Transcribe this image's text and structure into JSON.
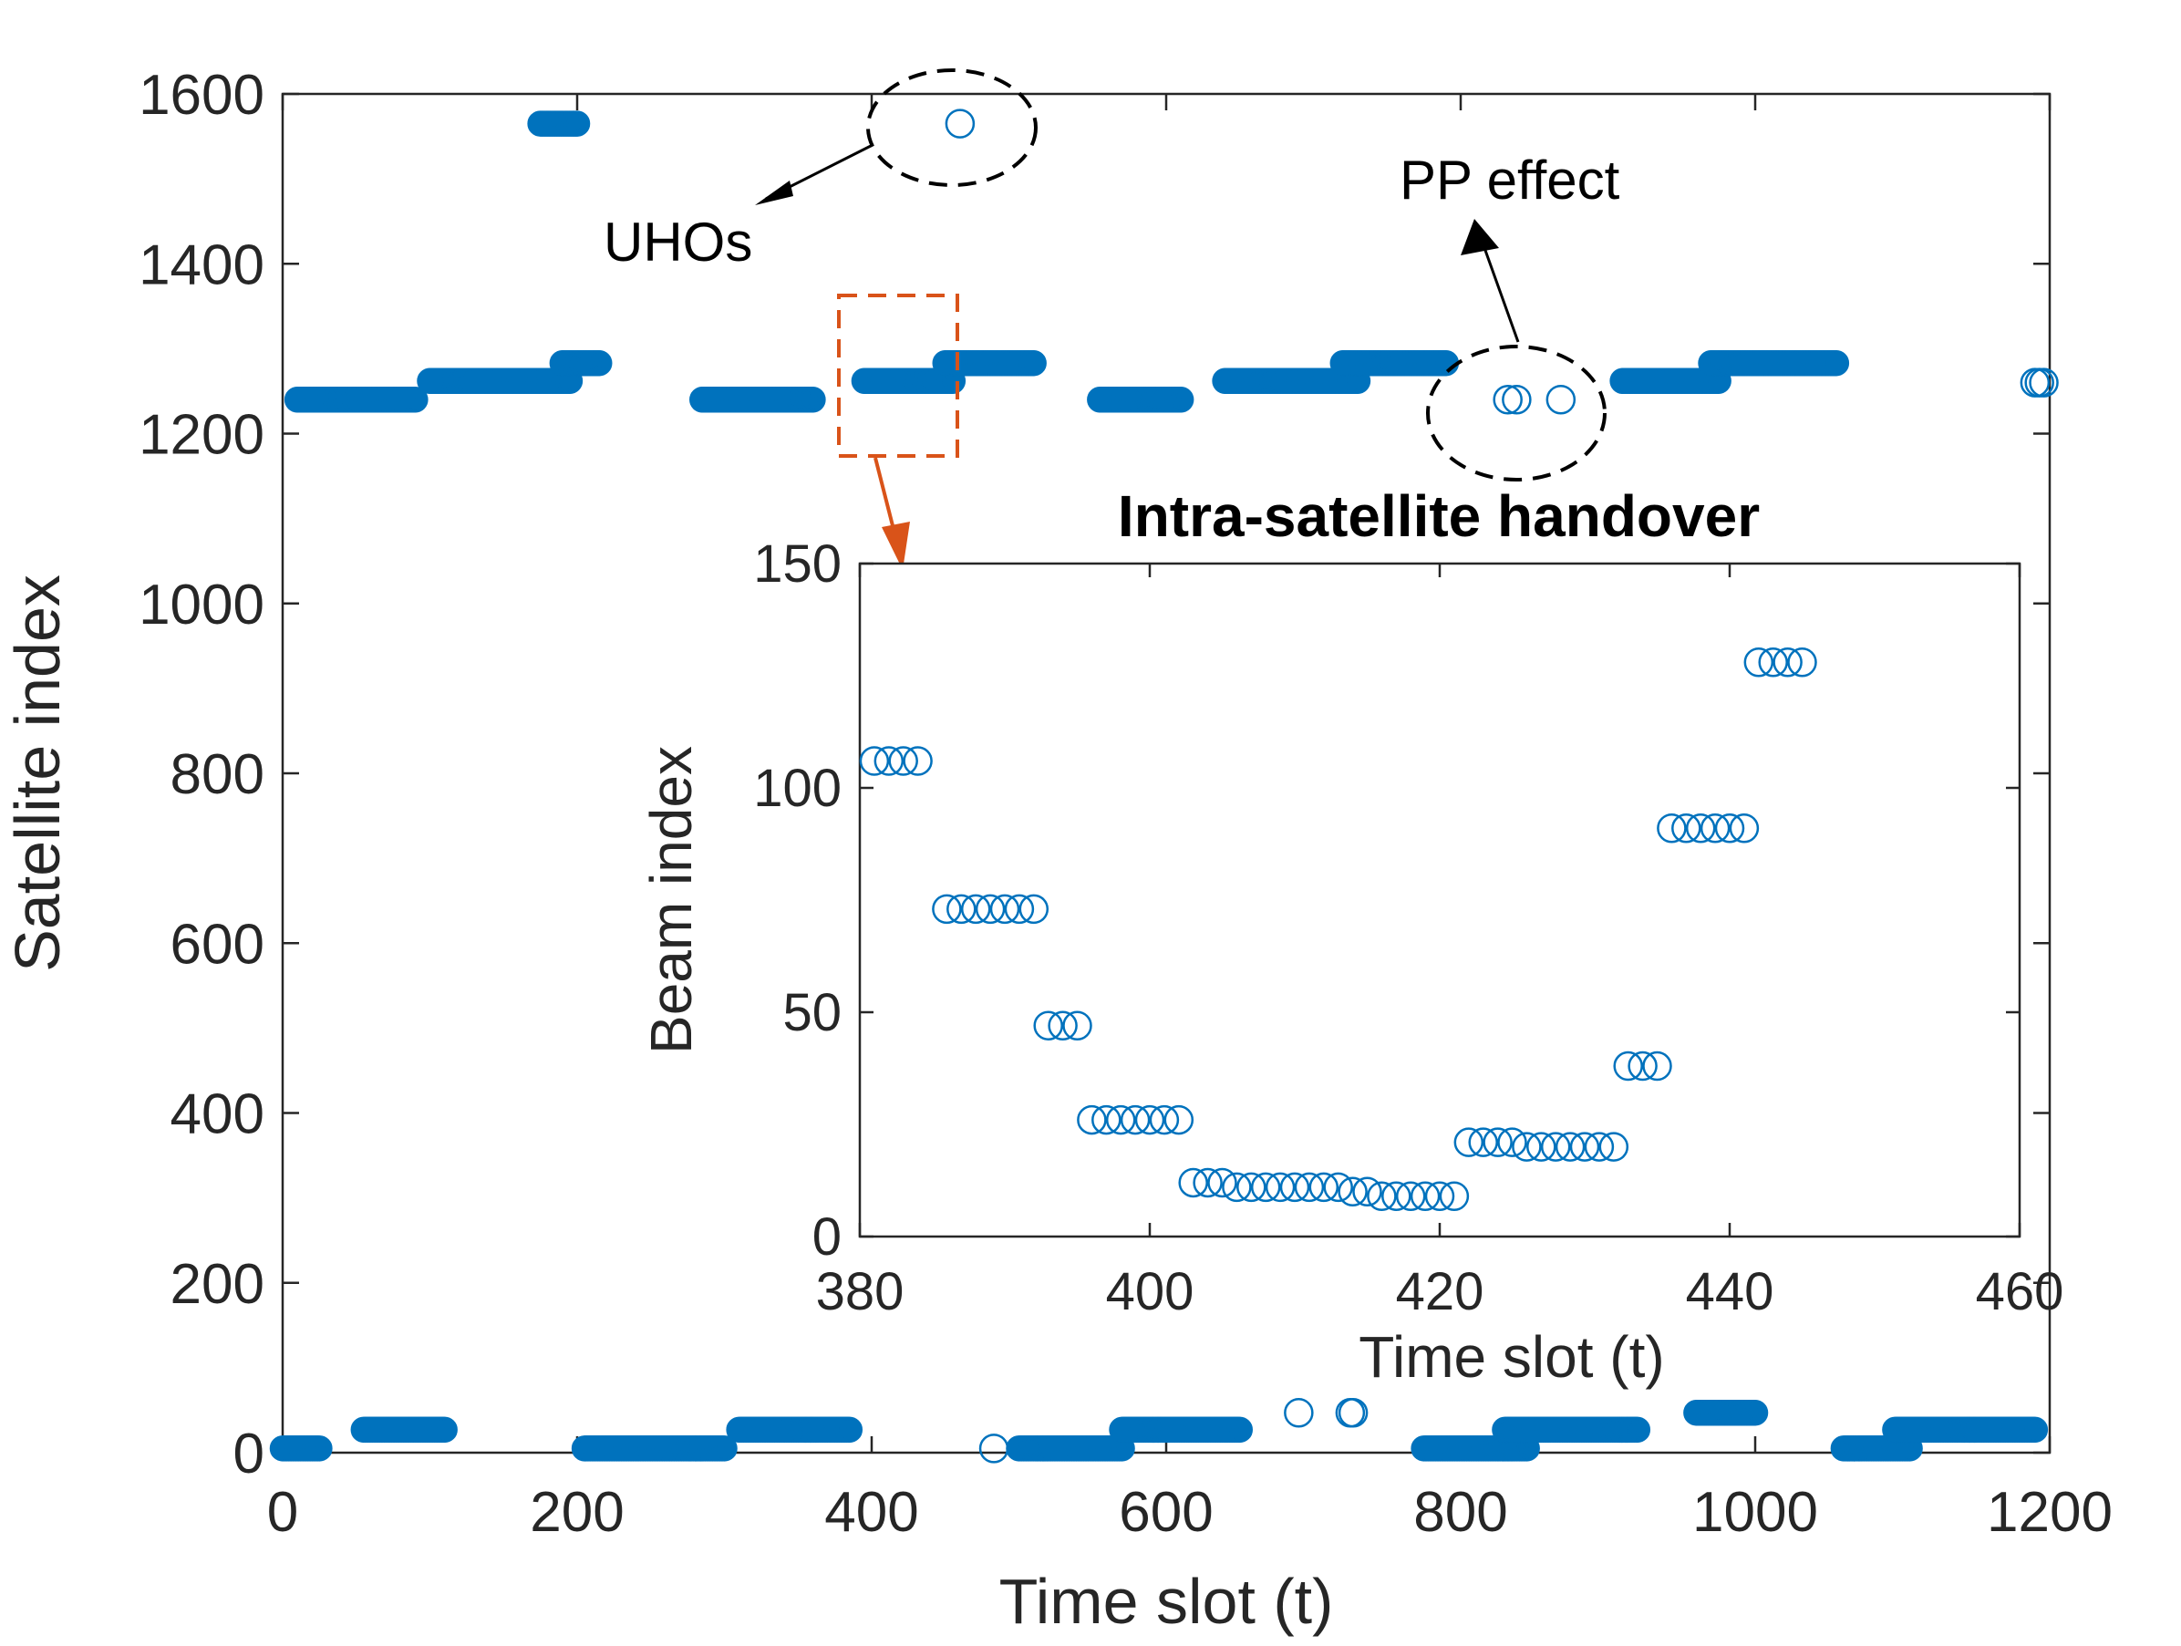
{
  "colors": {
    "marker": "#0072BD",
    "axis": "#262626",
    "zoom_box": "#D95319",
    "annotation": "#000000"
  },
  "chart_data": [
    {
      "type": "scatter",
      "name": "main",
      "xlabel": "Time slot (t)",
      "ylabel": "Satellite index",
      "xlim": [
        0,
        1200
      ],
      "ylim": [
        0,
        1600
      ],
      "xticks": [
        0,
        200,
        400,
        600,
        800,
        1000,
        1200
      ],
      "yticks": [
        0,
        200,
        400,
        600,
        800,
        1000,
        1200,
        1400,
        1600
      ],
      "marker": "open-circle",
      "segments": [
        {
          "x_start": 0,
          "x_end": 25,
          "y": 5
        },
        {
          "x_start": 10,
          "x_end": 90,
          "y": 1240
        },
        {
          "x_start": 55,
          "x_end": 110,
          "y": 27
        },
        {
          "x_start": 100,
          "x_end": 195,
          "y": 1262
        },
        {
          "x_start": 175,
          "x_end": 200,
          "y": 1565
        },
        {
          "x_start": 190,
          "x_end": 215,
          "y": 1283
        },
        {
          "x_start": 205,
          "x_end": 300,
          "y": 5
        },
        {
          "x_start": 285,
          "x_end": 360,
          "y": 1240
        },
        {
          "x_start": 310,
          "x_end": 385,
          "y": 27
        },
        {
          "x_start": 395,
          "x_end": 455,
          "y": 1262
        },
        {
          "x_start": 450,
          "x_end": 510,
          "y": 1283
        },
        {
          "x_start": 500,
          "x_end": 570,
          "y": 5
        },
        {
          "x_start": 555,
          "x_end": 610,
          "y": 1240
        },
        {
          "x_start": 570,
          "x_end": 650,
          "y": 27
        },
        {
          "x_start": 640,
          "x_end": 730,
          "y": 1262
        },
        {
          "x_start": 720,
          "x_end": 790,
          "y": 1283
        },
        {
          "x_start": 775,
          "x_end": 845,
          "y": 5
        },
        {
          "x_start": 830,
          "x_end": 920,
          "y": 27
        },
        {
          "x_start": 910,
          "x_end": 975,
          "y": 1262
        },
        {
          "x_start": 960,
          "x_end": 1000,
          "y": 47
        },
        {
          "x_start": 970,
          "x_end": 1055,
          "y": 1283
        },
        {
          "x_start": 1060,
          "x_end": 1105,
          "y": 5
        },
        {
          "x_start": 1095,
          "x_end": 1190,
          "y": 27
        }
      ],
      "points": [
        {
          "x": 460,
          "y": 1565
        },
        {
          "x": 483,
          "y": 5
        },
        {
          "x": 690,
          "y": 47
        },
        {
          "x": 725,
          "y": 47
        },
        {
          "x": 727,
          "y": 47
        },
        {
          "x": 832,
          "y": 1240
        },
        {
          "x": 838,
          "y": 1240
        },
        {
          "x": 868,
          "y": 1240
        },
        {
          "x": 1190,
          "y": 1260
        },
        {
          "x": 1193,
          "y": 1260
        },
        {
          "x": 1196,
          "y": 1260
        }
      ],
      "annotations": [
        {
          "text": "UHOs",
          "target": "outlier at t≈460, index≈1565"
        },
        {
          "text": "PP effect",
          "target": "points near t≈840–870, index≈1240"
        }
      ]
    },
    {
      "type": "scatter",
      "name": "inset",
      "title": "Intra-satellite handover",
      "xlabel": "Time slot (t)",
      "ylabel": "Beam index",
      "xlim": [
        380,
        460
      ],
      "ylim": [
        0,
        150
      ],
      "xticks": [
        380,
        400,
        420,
        440,
        460
      ],
      "yticks": [
        0,
        50,
        100,
        150
      ],
      "marker": "open-circle",
      "x": [
        381,
        382,
        383,
        384,
        386,
        387,
        388,
        389,
        390,
        391,
        392,
        393,
        394,
        395,
        396,
        397,
        398,
        399,
        400,
        401,
        402,
        403,
        404,
        405,
        406,
        407,
        408,
        409,
        410,
        411,
        412,
        413,
        414,
        415,
        416,
        417,
        418,
        419,
        420,
        421,
        422,
        423,
        424,
        425,
        426,
        427,
        428,
        429,
        430,
        431,
        432,
        433,
        434,
        435,
        436,
        437,
        438,
        439,
        440,
        441,
        442,
        443,
        444,
        445
      ],
      "y": [
        106,
        106,
        106,
        106,
        73,
        73,
        73,
        73,
        73,
        73,
        73,
        47,
        47,
        47,
        26,
        26,
        26,
        26,
        26,
        26,
        26,
        12,
        12,
        12,
        11,
        11,
        11,
        11,
        11,
        11,
        11,
        11,
        10,
        10,
        9,
        9,
        9,
        9,
        9,
        9,
        21,
        21,
        21,
        21,
        20,
        20,
        20,
        20,
        20,
        20,
        20,
        38,
        38,
        38,
        91,
        91,
        91,
        91,
        91,
        91,
        128,
        128,
        128,
        128
      ]
    }
  ]
}
